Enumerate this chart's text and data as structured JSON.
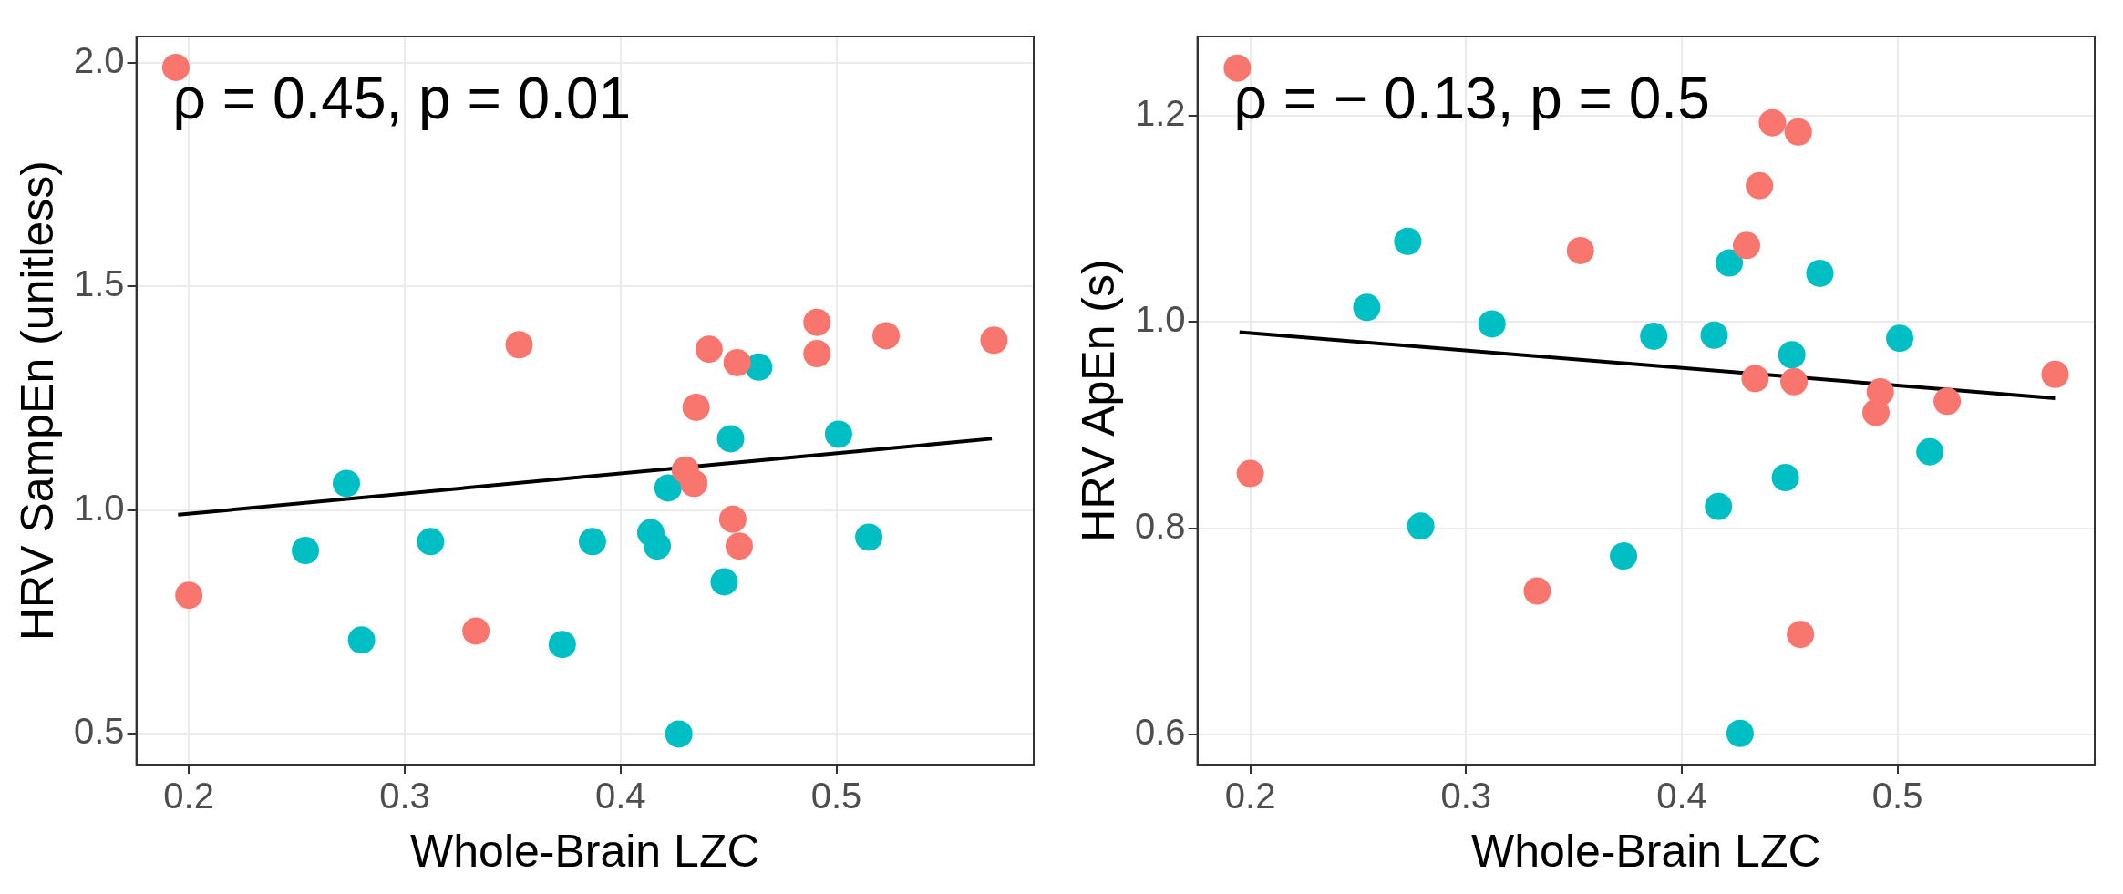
{
  "chart_data": [
    {
      "type": "scatter",
      "xlabel": "Whole-Brain LZC",
      "ylabel": "HRV SampEn (unitless)",
      "annotations": [
        "ρ = 0.45, p = 0.01"
      ],
      "xlim": [
        0.1757,
        0.5914
      ],
      "ylim": [
        0.4316,
        2.059
      ],
      "xticks": [
        0.2,
        0.3,
        0.4,
        0.5
      ],
      "yticks": [
        {
          "value": 0.5,
          "label": "0.5"
        },
        {
          "value": 1,
          "label": "1.0"
        },
        {
          "value": 1.5,
          "label": "1.5"
        },
        {
          "value": 2,
          "label": "2.0"
        }
      ],
      "grid": true,
      "legend": false,
      "marker": "circle",
      "series": [
        {
          "color": "#f8766d",
          "x": [
            0.194,
            0.2,
            0.353,
            0.333,
            0.441,
            0.454,
            0.435,
            0.491,
            0.491,
            0.523,
            0.573,
            0.43,
            0.434,
            0.452,
            0.455
          ],
          "values": [
            1.99,
            0.81,
            1.37,
            0.73,
            1.36,
            1.33,
            1.23,
            1.42,
            1.35,
            1.39,
            1.38,
            1.09,
            1.06,
            0.98,
            0.92
          ]
        },
        {
          "color": "#00bfc4",
          "x": [
            0.464,
            0.451,
            0.501,
            0.273,
            0.422,
            0.254,
            0.312,
            0.387,
            0.414,
            0.417,
            0.515,
            0.448,
            0.28,
            0.373,
            0.427
          ],
          "values": [
            1.32,
            1.16,
            1.17,
            1.06,
            1.05,
            0.91,
            0.93,
            0.93,
            0.95,
            0.92,
            0.94,
            0.84,
            0.71,
            0.7,
            0.5
          ]
        },
        {
          "type": "line",
          "color": "#000000",
          "marker": "none",
          "x": [
            0.195,
            0.572
          ],
          "values": [
            0.99,
            1.16
          ]
        }
      ]
    },
    {
      "type": "scatter",
      "xlabel": "Whole-Brain LZC",
      "ylabel": "HRV ApEn (s)",
      "annotations": [
        "ρ = − 0.13, p = 0.5"
      ],
      "xlim": [
        0.1755,
        0.5914
      ],
      "ylim": [
        0.5708,
        1.2766
      ],
      "xticks": [
        0.2,
        0.3,
        0.4,
        0.5
      ],
      "yticks": [
        {
          "value": 0.6,
          "label": "0.6"
        },
        {
          "value": 0.8,
          "label": "0.8"
        },
        {
          "value": 1,
          "label": "1.0"
        },
        {
          "value": 1.2,
          "label": "1.2"
        }
      ],
      "grid": true,
      "legend": false,
      "marker": "circle",
      "series": [
        {
          "color": "#f8766d",
          "x": [
            0.194,
            0.2,
            0.353,
            0.333,
            0.43,
            0.436,
            0.442,
            0.454,
            0.434,
            0.452,
            0.492,
            0.49,
            0.523,
            0.573,
            0.455
          ],
          "values": [
            1.246,
            0.853,
            1.069,
            0.739,
            1.074,
            1.132,
            1.193,
            1.184,
            0.945,
            0.942,
            0.932,
            0.912,
            0.923,
            0.949,
            0.697
          ]
        },
        {
          "color": "#00bfc4",
          "x": [
            0.273,
            0.254,
            0.312,
            0.387,
            0.415,
            0.422,
            0.464,
            0.451,
            0.501,
            0.515,
            0.448,
            0.417,
            0.279,
            0.373,
            0.427
          ],
          "values": [
            1.078,
            1.014,
            0.998,
            0.986,
            0.987,
            1.057,
            1.047,
            0.968,
            0.984,
            0.874,
            0.849,
            0.821,
            0.802,
            0.773,
            0.601
          ]
        },
        {
          "type": "line",
          "color": "#000000",
          "marker": "none",
          "x": [
            0.195,
            0.573
          ],
          "values": [
            0.99,
            0.926
          ]
        }
      ]
    }
  ]
}
